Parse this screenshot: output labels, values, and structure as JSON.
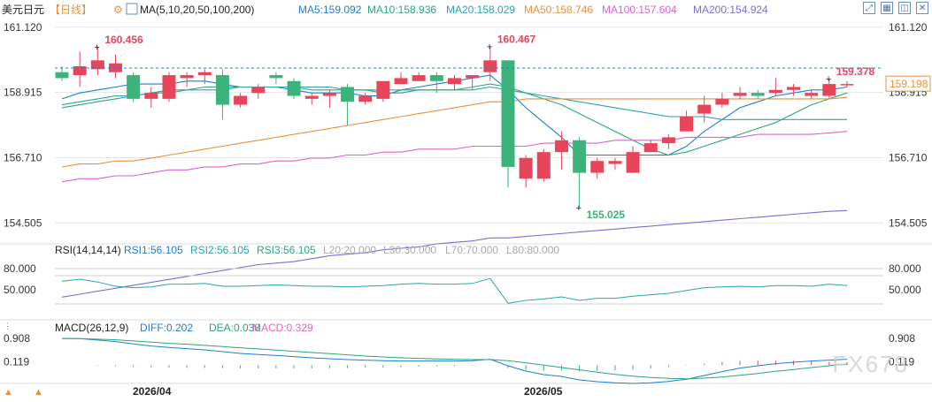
{
  "header": {
    "symbol": "美元日元",
    "period": "【日线】",
    "ma_label": "MA(5,10,20,50,100,200)",
    "ma_values": [
      {
        "label": "MA5:159.092",
        "color": "#1e7ed3"
      },
      {
        "label": "MA10:158.936",
        "color": "#2aa876"
      },
      {
        "label": "MA20:158.029",
        "color": "#28a6a6"
      },
      {
        "label": "MA50:158.746",
        "color": "#e8913c"
      },
      {
        "label": "MA100:157.604",
        "color": "#d966c9"
      },
      {
        "label": "MA200:154.924",
        "color": "#7a6fd6"
      }
    ]
  },
  "icons": [
    "expand-icon",
    "grid-icon",
    "layout-icon",
    "close-icon"
  ],
  "price_axis": {
    "ticks": [
      "161.120",
      "158.915",
      "156.710",
      "154.505"
    ],
    "current": "159.198"
  },
  "annotations": {
    "high1": "160.456",
    "high2": "160.467",
    "low": "155.025",
    "last": "159.378"
  },
  "x_labels": [
    "2026/04",
    "2026/05"
  ],
  "rsi": {
    "title": "RSI(14,14,14)",
    "values": [
      {
        "label": "RSI1:56.105",
        "color": "#1e7ed3"
      },
      {
        "label": "RSI2:56.105",
        "color": "#28a6a6"
      },
      {
        "label": "RSI3:56.105",
        "color": "#2aa876"
      },
      {
        "label": "L20:20.000",
        "color": "#aaaaaa"
      },
      {
        "label": "L30:30.000",
        "color": "#aaaaaa"
      },
      {
        "label": "L70:70.000",
        "color": "#aaaaaa"
      },
      {
        "label": "L80:80.000",
        "color": "#aaaaaa"
      }
    ],
    "ticks": [
      "80.000",
      "50.000"
    ]
  },
  "macd": {
    "title": "MACD(26,12,9)",
    "values": [
      {
        "label": "DIFF:0.202",
        "color": "#1e7ed3"
      },
      {
        "label": "DEA:0.038",
        "color": "#2aa876"
      },
      {
        "label": "MACD:0.329",
        "color": "#d966c9"
      }
    ],
    "ticks": [
      "0.908",
      "0.119"
    ]
  },
  "watermark": "FX678",
  "colors": {
    "up": "#e8455a",
    "down": "#3bb37a",
    "grid": "#e6e6e6"
  },
  "chart_data": {
    "type": "candlestick",
    "candles": [
      {
        "o": 159.6,
        "h": 159.8,
        "l": 159.3,
        "c": 159.4
      },
      {
        "o": 159.5,
        "h": 160.3,
        "l": 159.1,
        "c": 159.8
      },
      {
        "o": 159.7,
        "h": 160.456,
        "l": 159.5,
        "c": 160.0
      },
      {
        "o": 159.6,
        "h": 160.2,
        "l": 159.4,
        "c": 159.9
      },
      {
        "o": 159.5,
        "h": 159.6,
        "l": 158.6,
        "c": 158.7
      },
      {
        "o": 158.7,
        "h": 159.1,
        "l": 158.4,
        "c": 158.9
      },
      {
        "o": 158.7,
        "h": 159.6,
        "l": 158.6,
        "c": 159.5
      },
      {
        "o": 159.4,
        "h": 159.6,
        "l": 159.1,
        "c": 159.5
      },
      {
        "o": 159.5,
        "h": 159.7,
        "l": 159.2,
        "c": 159.6
      },
      {
        "o": 159.5,
        "h": 159.7,
        "l": 158.0,
        "c": 158.5
      },
      {
        "o": 158.5,
        "h": 158.9,
        "l": 158.4,
        "c": 158.8
      },
      {
        "o": 158.9,
        "h": 159.2,
        "l": 158.7,
        "c": 159.1
      },
      {
        "o": 159.5,
        "h": 159.6,
        "l": 159.2,
        "c": 159.4
      },
      {
        "o": 159.3,
        "h": 159.4,
        "l": 158.7,
        "c": 158.8
      },
      {
        "o": 158.7,
        "h": 158.9,
        "l": 158.5,
        "c": 158.8
      },
      {
        "o": 158.8,
        "h": 159.0,
        "l": 158.4,
        "c": 158.9
      },
      {
        "o": 159.1,
        "h": 159.2,
        "l": 157.8,
        "c": 158.6
      },
      {
        "o": 158.6,
        "h": 158.9,
        "l": 158.5,
        "c": 158.8
      },
      {
        "o": 158.7,
        "h": 159.3,
        "l": 158.6,
        "c": 159.3
      },
      {
        "o": 159.2,
        "h": 159.6,
        "l": 159.2,
        "c": 159.4
      },
      {
        "o": 159.3,
        "h": 159.6,
        "l": 159.3,
        "c": 159.5
      },
      {
        "o": 159.5,
        "h": 159.6,
        "l": 158.9,
        "c": 159.3
      },
      {
        "o": 159.2,
        "h": 159.5,
        "l": 159.0,
        "c": 159.4
      },
      {
        "o": 159.4,
        "h": 159.5,
        "l": 159.0,
        "c": 159.5
      },
      {
        "o": 159.6,
        "h": 160.467,
        "l": 159.3,
        "c": 160.0
      },
      {
        "o": 160.0,
        "h": 160.0,
        "l": 155.7,
        "c": 156.4
      },
      {
        "o": 156.0,
        "h": 156.8,
        "l": 155.7,
        "c": 156.7
      },
      {
        "o": 156.0,
        "h": 157.0,
        "l": 155.9,
        "c": 156.9
      },
      {
        "o": 156.9,
        "h": 157.6,
        "l": 156.3,
        "c": 157.3
      },
      {
        "o": 157.3,
        "h": 157.4,
        "l": 155.025,
        "c": 156.2
      },
      {
        "o": 156.2,
        "h": 156.7,
        "l": 156.0,
        "c": 156.6
      },
      {
        "o": 156.5,
        "h": 156.7,
        "l": 156.3,
        "c": 156.6
      },
      {
        "o": 156.2,
        "h": 157.1,
        "l": 156.2,
        "c": 156.9
      },
      {
        "o": 156.9,
        "h": 157.3,
        "l": 156.9,
        "c": 157.2
      },
      {
        "o": 157.2,
        "h": 157.5,
        "l": 157.0,
        "c": 157.4
      },
      {
        "o": 157.6,
        "h": 158.3,
        "l": 157.6,
        "c": 158.1
      },
      {
        "o": 158.2,
        "h": 158.8,
        "l": 157.9,
        "c": 158.5
      },
      {
        "o": 158.5,
        "h": 158.9,
        "l": 158.4,
        "c": 158.7
      },
      {
        "o": 158.8,
        "h": 159.1,
        "l": 158.7,
        "c": 158.9
      },
      {
        "o": 158.9,
        "h": 159.0,
        "l": 158.7,
        "c": 158.8
      },
      {
        "o": 158.9,
        "h": 159.4,
        "l": 158.8,
        "c": 159.0
      },
      {
        "o": 159.0,
        "h": 159.2,
        "l": 158.8,
        "c": 159.1
      },
      {
        "o": 158.8,
        "h": 159.0,
        "l": 158.7,
        "c": 158.9
      },
      {
        "o": 158.8,
        "h": 159.378,
        "l": 158.7,
        "c": 159.2
      },
      {
        "o": 159.2,
        "h": 159.3,
        "l": 159.1,
        "c": 159.2
      }
    ],
    "ma": [
      {
        "name": "MA5",
        "color": "#1e7ed3",
        "values": [
          158.7,
          158.9,
          159.0,
          159.1,
          159.2,
          159.2,
          159.2,
          159.3,
          159.3,
          159.2,
          159.1,
          159.1,
          159.1,
          159.0,
          158.9,
          158.9,
          158.9,
          158.8,
          158.8,
          159.0,
          159.1,
          159.2,
          159.3,
          159.4,
          159.5,
          159.0,
          158.4,
          157.9,
          157.4,
          156.8,
          156.8,
          156.8,
          156.8,
          156.8,
          156.8,
          157.1,
          157.6,
          158.0,
          158.4,
          158.6,
          158.8,
          158.9,
          159.0,
          159.0,
          159.1
        ]
      },
      {
        "name": "MA10",
        "color": "#2aa876",
        "values": [
          158.4,
          158.5,
          158.6,
          158.7,
          158.8,
          158.9,
          159.0,
          159.0,
          159.1,
          159.1,
          159.1,
          159.1,
          159.1,
          159.1,
          159.0,
          159.0,
          159.0,
          159.0,
          158.9,
          158.9,
          159.0,
          159.0,
          159.0,
          159.1,
          159.2,
          159.1,
          158.9,
          158.7,
          158.5,
          158.2,
          157.9,
          157.6,
          157.3,
          157.0,
          156.8,
          156.9,
          157.1,
          157.3,
          157.5,
          157.7,
          157.9,
          158.2,
          158.5,
          158.7,
          158.9
        ]
      },
      {
        "name": "MA20",
        "color": "#28a6a6",
        "values": [
          158.5,
          158.6,
          158.7,
          158.8,
          158.8,
          158.9,
          158.9,
          159.0,
          159.0,
          159.0,
          159.1,
          159.1,
          159.1,
          159.1,
          159.1,
          159.1,
          159.0,
          159.0,
          159.0,
          159.0,
          159.0,
          159.0,
          159.0,
          159.0,
          159.1,
          159.0,
          158.9,
          158.8,
          158.7,
          158.6,
          158.5,
          158.4,
          158.3,
          158.2,
          158.1,
          158.1,
          158.1,
          158.0,
          158.0,
          158.0,
          158.0,
          158.0,
          158.0,
          158.0,
          158.0
        ]
      },
      {
        "name": "MA50",
        "color": "#e8913c",
        "values": [
          156.4,
          156.5,
          156.5,
          156.6,
          156.6,
          156.7,
          156.8,
          156.9,
          157.0,
          157.1,
          157.2,
          157.3,
          157.4,
          157.5,
          157.6,
          157.7,
          157.8,
          157.9,
          158.0,
          158.1,
          158.2,
          158.3,
          158.4,
          158.5,
          158.6,
          158.6,
          158.7,
          158.7,
          158.7,
          158.7,
          158.7,
          158.7,
          158.7,
          158.7,
          158.7,
          158.7,
          158.7,
          158.7,
          158.7,
          158.7,
          158.7,
          158.7,
          158.7,
          158.7,
          158.75
        ]
      },
      {
        "name": "MA100",
        "color": "#d966c9",
        "values": [
          155.9,
          156.0,
          156.0,
          156.1,
          156.1,
          156.2,
          156.3,
          156.3,
          156.4,
          156.4,
          156.5,
          156.5,
          156.6,
          156.6,
          156.7,
          156.7,
          156.8,
          156.8,
          156.9,
          156.9,
          157.0,
          157.0,
          157.0,
          157.1,
          157.1,
          157.1,
          157.1,
          157.2,
          157.2,
          157.2,
          157.2,
          157.3,
          157.3,
          157.3,
          157.3,
          157.4,
          157.4,
          157.4,
          157.4,
          157.5,
          157.5,
          157.5,
          157.5,
          157.55,
          157.6
        ]
      },
      {
        "name": "MA200",
        "color": "#7a6fd6",
        "values": [
          152.0,
          152.1,
          152.2,
          152.3,
          152.4,
          152.5,
          152.6,
          152.7,
          152.8,
          152.9,
          153.0,
          153.1,
          153.15,
          153.2,
          153.3,
          153.4,
          153.45,
          153.5,
          153.6,
          153.65,
          153.7,
          153.8,
          153.85,
          153.9,
          154.0,
          154.0,
          154.05,
          154.1,
          154.15,
          154.2,
          154.25,
          154.3,
          154.35,
          154.4,
          154.45,
          154.5,
          154.55,
          154.6,
          154.65,
          154.7,
          154.75,
          154.8,
          154.85,
          154.9,
          154.924
        ]
      }
    ],
    "rsi_values": [
      62,
      65,
      61,
      55,
      53,
      54,
      58,
      58,
      59,
      55,
      55,
      56,
      57,
      56,
      55,
      55,
      54,
      55,
      56,
      58,
      59,
      58,
      58,
      59,
      66,
      31,
      35,
      37,
      40,
      35,
      38,
      38,
      41,
      43,
      45,
      49,
      53,
      54,
      55,
      54,
      56,
      56,
      55,
      58,
      56
    ],
    "macd_diff": [
      0.908,
      0.9,
      0.85,
      0.8,
      0.72,
      0.65,
      0.6,
      0.56,
      0.52,
      0.46,
      0.4,
      0.36,
      0.33,
      0.29,
      0.25,
      0.22,
      0.19,
      0.17,
      0.15,
      0.14,
      0.14,
      0.14,
      0.14,
      0.15,
      0.2,
      -0.02,
      -0.2,
      -0.32,
      -0.38,
      -0.5,
      -0.56,
      -0.6,
      -0.62,
      -0.6,
      -0.55,
      -0.48,
      -0.35,
      -0.22,
      -0.1,
      -0.02,
      0.05,
      0.1,
      0.14,
      0.17,
      0.202
    ],
    "macd_dea": [
      0.9,
      0.9,
      0.88,
      0.86,
      0.82,
      0.78,
      0.74,
      0.71,
      0.67,
      0.63,
      0.59,
      0.55,
      0.51,
      0.47,
      0.43,
      0.39,
      0.35,
      0.31,
      0.28,
      0.25,
      0.23,
      0.21,
      0.2,
      0.19,
      0.19,
      0.15,
      0.08,
      0.0,
      -0.08,
      -0.16,
      -0.24,
      -0.31,
      -0.37,
      -0.42,
      -0.45,
      -0.46,
      -0.44,
      -0.4,
      -0.34,
      -0.28,
      -0.21,
      -0.15,
      -0.08,
      -0.02,
      0.038
    ],
    "ylim": [
      153.8,
      161.8
    ]
  }
}
